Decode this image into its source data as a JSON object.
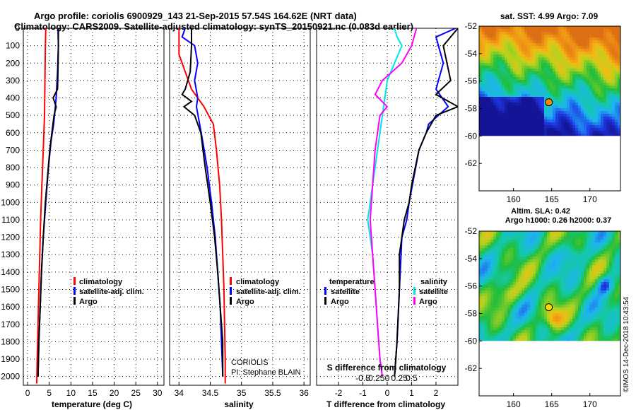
{
  "title": {
    "line1": "Argo profile: coriolis 6900929_143 21-Sep-2015 57.54S 164.62E (NRT data)",
    "line2": "Climatology: CARS2009. Satellite-adjusted climatology: synTS_20150921.nc (0.083d earlier)"
  },
  "colors": {
    "climatology": "#ff0000",
    "satellite": "#0000ff",
    "argo": "#000000",
    "sat_salinity": "#00e5e5",
    "argo_salinity_diff": "#ff00ff"
  },
  "depth_axis": {
    "ylim": [
      0,
      2050
    ],
    "ticks": [
      "0",
      "100",
      "200",
      "300",
      "400",
      "500",
      "600",
      "700",
      "800",
      "900",
      "1000",
      "1100",
      "1200",
      "1300",
      "1400",
      "1500",
      "1600",
      "1700",
      "1800",
      "1900",
      "2000"
    ]
  },
  "chart_data": [
    {
      "type": "line",
      "id": "temperature",
      "xlabel": "temperature (deg C)",
      "xlim": [
        -1,
        31.5
      ],
      "xticks": [
        0,
        5,
        10,
        15,
        20,
        25,
        30
      ],
      "legend": {
        "items": [
          "climatology",
          "satellite-adj. clim.",
          "Argo"
        ]
      },
      "series": [
        {
          "name": "climatology",
          "color": "#ff0000",
          "points": [
            [
              4.2,
              0
            ],
            [
              4.1,
              100
            ],
            [
              4.0,
              300
            ],
            [
              3.9,
              500
            ],
            [
              3.6,
              700
            ],
            [
              3.3,
              900
            ],
            [
              3.0,
              1100
            ],
            [
              2.8,
              1300
            ],
            [
              2.6,
              1500
            ],
            [
              2.4,
              1700
            ],
            [
              2.2,
              1900
            ],
            [
              2.1,
              2040
            ]
          ]
        },
        {
          "name": "satellite-adj. clim.",
          "color": "#0000ff",
          "points": [
            [
              7.0,
              0
            ],
            [
              7.1,
              100
            ],
            [
              6.9,
              250
            ],
            [
              6.6,
              400
            ],
            [
              6.4,
              450
            ],
            [
              6.0,
              550
            ],
            [
              5.4,
              650
            ],
            [
              4.8,
              800
            ],
            [
              4.2,
              1000
            ],
            [
              3.6,
              1200
            ],
            [
              3.2,
              1400
            ],
            [
              2.9,
              1600
            ],
            [
              2.6,
              1800
            ],
            [
              2.4,
              2000
            ]
          ]
        },
        {
          "name": "Argo",
          "color": "#000000",
          "points": [
            [
              7.1,
              0
            ],
            [
              7.1,
              100
            ],
            [
              7.0,
              250
            ],
            [
              6.9,
              350
            ],
            [
              5.9,
              400
            ],
            [
              6.6,
              450
            ],
            [
              6.1,
              500
            ],
            [
              5.6,
              600
            ],
            [
              5.1,
              700
            ],
            [
              4.6,
              850
            ],
            [
              4.1,
              1000
            ],
            [
              3.6,
              1200
            ],
            [
              3.2,
              1400
            ],
            [
              2.9,
              1600
            ],
            [
              2.6,
              1800
            ],
            [
              2.4,
              2000
            ]
          ]
        }
      ]
    },
    {
      "type": "line",
      "id": "salinity",
      "xlabel": "salinity",
      "xlim": [
        33.85,
        36.1
      ],
      "xticks": [
        34,
        34.5,
        35,
        35.5,
        36
      ],
      "legend": {
        "items": [
          "climatology",
          "satellite-adj. clim.",
          "Argo"
        ]
      },
      "series": [
        {
          "name": "climatology",
          "color": "#ff0000",
          "points": [
            [
              34.0,
              0
            ],
            [
              34.0,
              150
            ],
            [
              34.1,
              250
            ],
            [
              34.2,
              350
            ],
            [
              34.4,
              450
            ],
            [
              34.55,
              550
            ],
            [
              34.6,
              700
            ],
            [
              34.65,
              900
            ],
            [
              34.68,
              1100
            ],
            [
              34.7,
              1300
            ],
            [
              34.72,
              1500
            ],
            [
              34.73,
              1700
            ],
            [
              34.74,
              1900
            ],
            [
              34.74,
              2040
            ]
          ]
        },
        {
          "name": "satellite-adj. clim.",
          "color": "#0000ff",
          "points": [
            [
              34.1,
              0
            ],
            [
              34.05,
              50
            ],
            [
              34.25,
              100
            ],
            [
              34.3,
              200
            ],
            [
              34.25,
              300
            ],
            [
              34.3,
              400
            ],
            [
              34.28,
              450
            ],
            [
              34.33,
              550
            ],
            [
              34.38,
              650
            ],
            [
              34.45,
              800
            ],
            [
              34.52,
              1000
            ],
            [
              34.58,
              1200
            ],
            [
              34.62,
              1400
            ],
            [
              34.66,
              1600
            ],
            [
              34.68,
              1800
            ],
            [
              34.7,
              2000
            ]
          ]
        },
        {
          "name": "Argo",
          "color": "#000000",
          "points": [
            [
              34.2,
              0
            ],
            [
              34.2,
              100
            ],
            [
              34.18,
              250
            ],
            [
              34.1,
              350
            ],
            [
              34.05,
              380
            ],
            [
              34.2,
              420
            ],
            [
              34.08,
              450
            ],
            [
              34.25,
              500
            ],
            [
              34.35,
              600
            ],
            [
              34.42,
              800
            ],
            [
              34.5,
              1000
            ],
            [
              34.57,
              1200
            ],
            [
              34.62,
              1400
            ],
            [
              34.66,
              1600
            ],
            [
              34.7,
              1800
            ],
            [
              34.7,
              2000
            ]
          ]
        }
      ],
      "annotation": {
        "line1": "CORIOLIS",
        "line2": "PI: Stephane BLAIN"
      }
    },
    {
      "type": "line",
      "id": "difference",
      "xlabel": "T difference from climatology",
      "xlabel_top": "S difference from climatology",
      "xlim": [
        -2.9,
        2.9
      ],
      "xticks": [
        -2,
        -1,
        0,
        1,
        2
      ],
      "xticks_top": [
        "-0.5",
        "-0.25",
        "0",
        "0.25",
        "0.5"
      ],
      "legend": {
        "temperature_title": "temperature",
        "salinity_title": "salinity",
        "temperature_items": [
          "satellite",
          "Argo"
        ],
        "salinity_items": [
          "satellite",
          "Argo"
        ]
      },
      "series": [
        {
          "name": "temperature satellite",
          "color": "#0000ff",
          "points": [
            [
              2.8,
              0
            ],
            [
              2.0,
              50
            ],
            [
              2.3,
              200
            ],
            [
              2.0,
              350
            ],
            [
              2.5,
              450
            ],
            [
              1.7,
              550
            ],
            [
              1.6,
              600
            ],
            [
              1.3,
              700
            ],
            [
              1.1,
              850
            ],
            [
              0.9,
              1000
            ],
            [
              0.8,
              1100
            ],
            [
              0.6,
              1200
            ],
            [
              0.5,
              1500
            ],
            [
              0.4,
              1800
            ],
            [
              0.3,
              2000
            ]
          ]
        },
        {
          "name": "temperature Argo",
          "color": "#000000",
          "points": [
            [
              2.9,
              0
            ],
            [
              2.3,
              100
            ],
            [
              2.6,
              300
            ],
            [
              2.0,
              380
            ],
            [
              2.9,
              450
            ],
            [
              2.0,
              500
            ],
            [
              1.6,
              600
            ],
            [
              1.3,
              700
            ],
            [
              1.0,
              900
            ],
            [
              0.9,
              1000
            ],
            [
              0.7,
              1100
            ],
            [
              0.5,
              1300
            ],
            [
              0.5,
              1500
            ],
            [
              0.4,
              1800
            ],
            [
              0.3,
              2000
            ]
          ]
        },
        {
          "name": "salinity satellite",
          "color": "#00e5e5",
          "points": [
            [
              0.3,
              0
            ],
            [
              0.4,
              50
            ],
            [
              0.6,
              100
            ],
            [
              0.3,
              200
            ],
            [
              0.0,
              300
            ],
            [
              -0.1,
              400
            ],
            [
              -0.2,
              500
            ],
            [
              -0.4,
              700
            ],
            [
              -0.6,
              900
            ],
            [
              -0.8,
              1100
            ],
            [
              -0.6,
              1300
            ],
            [
              -0.5,
              1500
            ],
            [
              -0.4,
              1700
            ],
            [
              -0.3,
              1900
            ],
            [
              -0.2,
              2000
            ]
          ]
        },
        {
          "name": "salinity Argo",
          "color": "#ff00ff",
          "points": [
            [
              1.2,
              0
            ],
            [
              1.1,
              50
            ],
            [
              1.0,
              100
            ],
            [
              0.6,
              200
            ],
            [
              -0.2,
              300
            ],
            [
              -0.5,
              380
            ],
            [
              0.0,
              450
            ],
            [
              -0.3,
              500
            ],
            [
              -0.4,
              600
            ],
            [
              -0.5,
              700
            ],
            [
              -0.6,
              900
            ],
            [
              -0.7,
              1100
            ],
            [
              -0.6,
              1300
            ],
            [
              -0.5,
              1500
            ],
            [
              -0.4,
              1700
            ],
            [
              -0.3,
              1900
            ],
            [
              -0.2,
              2000
            ]
          ]
        }
      ]
    },
    {
      "type": "heatmap",
      "id": "sst-map",
      "title": "sat. SST: 4.99 Argo: 7.09",
      "xlim": [
        155.5,
        174
      ],
      "ylim": [
        -64,
        -52
      ],
      "xticks": [
        160,
        165,
        170
      ],
      "yticks": [
        -52,
        -54,
        -56,
        -58,
        -60,
        -62
      ],
      "data_extent_lat": [
        -60,
        -52
      ],
      "argo_position": [
        164.62,
        -57.54
      ],
      "marker_color": "#ff8c00"
    },
    {
      "type": "heatmap",
      "id": "sla-map",
      "title_line1": "Altim. SLA: 0.42",
      "title_line2": "Argo h1000: 0.26 h2000: 0.37",
      "xlim": [
        155.5,
        174
      ],
      "ylim": [
        -64,
        -52
      ],
      "xticks": [
        160,
        165,
        170
      ],
      "yticks": [
        -52,
        -54,
        -56,
        -58,
        -60,
        -62
      ],
      "data_extent_lat": [
        -60,
        -52
      ],
      "argo_position": [
        164.62,
        -57.54
      ],
      "marker_color": "#ffd700"
    }
  ],
  "stamp": "©IMOS 14-Dec-2018 10:43:54"
}
